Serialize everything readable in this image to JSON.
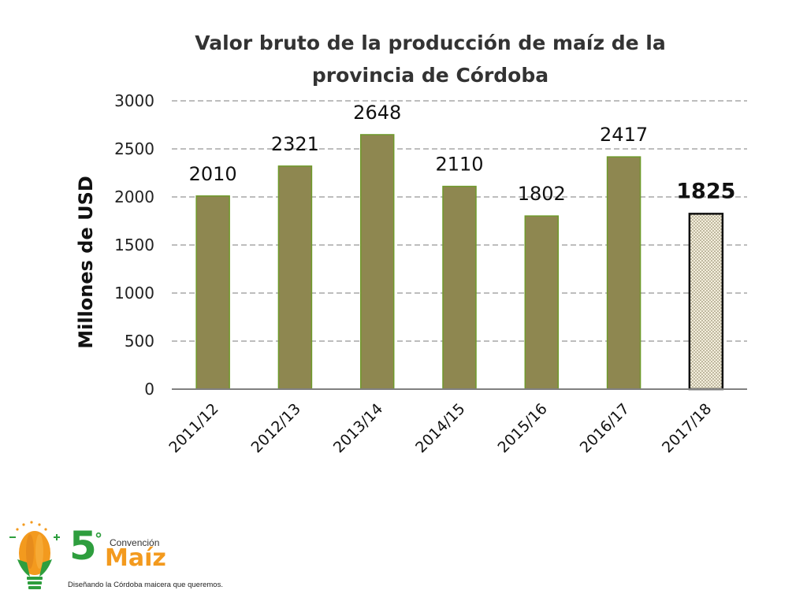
{
  "chart_data": {
    "type": "bar",
    "title": "Valor bruto de la producción de maíz de la provincia de Córdoba",
    "title_lines": [
      "Valor bruto de la producción de maíz de la",
      "provincia de Córdoba"
    ],
    "ylabel": "Millones de USD",
    "xlabel": "",
    "ylim": [
      0,
      3000
    ],
    "yticks": [
      0,
      500,
      1000,
      1500,
      2000,
      2500,
      3000
    ],
    "grid": true,
    "categories": [
      "2011/12",
      "2012/13",
      "2013/14",
      "2014/15",
      "2015/16",
      "2016/17",
      "2017/18"
    ],
    "values": [
      2010,
      2321,
      2648,
      2110,
      1802,
      2417,
      1825
    ],
    "data_labels": [
      "2010",
      "2321",
      "2648",
      "2110",
      "1802",
      "2417",
      "1825"
    ],
    "highlight_index": 6,
    "colors": {
      "bar": "#8e8750",
      "bar_edge": "#6f9a2b",
      "highlight_edge": "#111111",
      "grid": "#bdbdbd"
    }
  },
  "logo": {
    "number": "5",
    "degree": "°",
    "label_small": "Convención",
    "label_big": "Maíz",
    "tagline": "Diseñando la Córdoba maicera que queremos.",
    "colors": {
      "green": "#2e9e3e",
      "orange": "#f39a1e"
    }
  }
}
